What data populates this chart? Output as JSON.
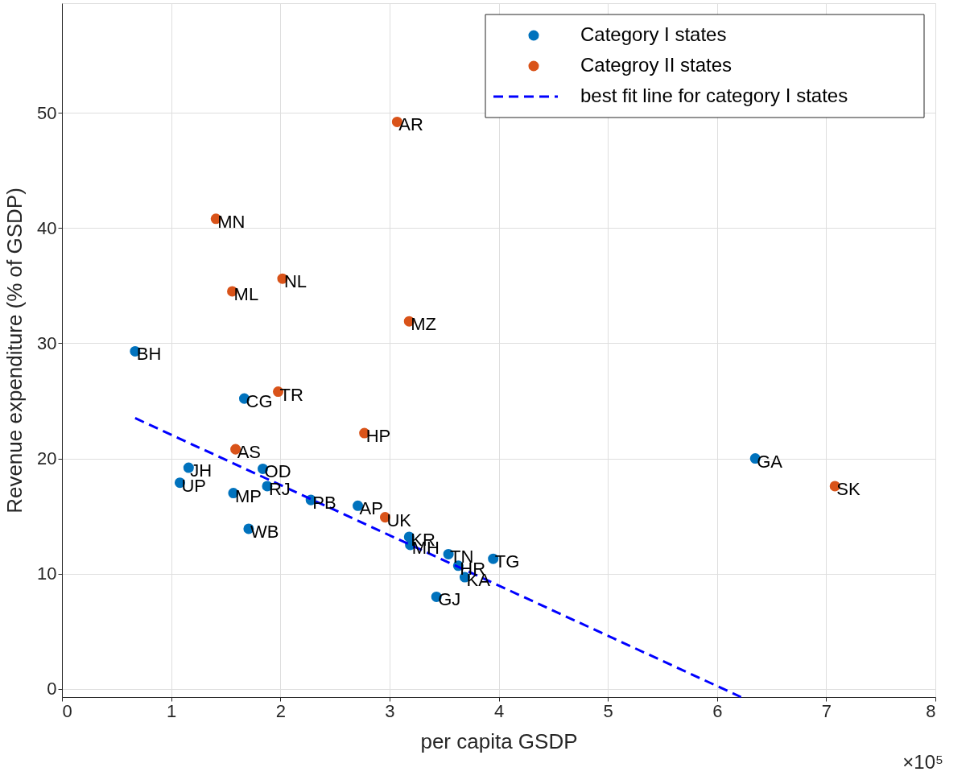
{
  "chart_data": {
    "type": "scatter",
    "xlabel": "per capita GSDP",
    "ylabel": "Revenue expenditure (% of GSDP)",
    "xlim": [
      0,
      8
    ],
    "xticks": [
      0,
      1,
      2,
      3,
      4,
      5,
      6,
      7,
      8
    ],
    "ylim": [
      -0.7,
      59.5
    ],
    "yticks": [
      0,
      10,
      20,
      30,
      40,
      50
    ],
    "grid": true,
    "legend": "top right",
    "marker": "circle",
    "series": [
      {
        "name": "Category I states",
        "color": "#0072bd",
        "x": [
          0.67,
          1.67,
          1.16,
          1.08,
          1.84,
          1.88,
          1.57,
          1.71,
          2.28,
          2.71,
          3.18,
          3.19,
          3.54,
          3.63,
          3.69,
          3.43,
          3.95,
          6.35
        ],
        "values": [
          29.3,
          25.2,
          19.2,
          17.9,
          19.1,
          17.6,
          17.0,
          13.9,
          16.4,
          15.9,
          13.2,
          12.5,
          11.7,
          10.7,
          9.7,
          8.0,
          11.3,
          20.0
        ]
      },
      {
        "name": "Categroy II states",
        "color": "#d95319",
        "x": [
          3.07,
          1.41,
          1.56,
          2.02,
          3.18,
          1.98,
          2.77,
          1.59,
          2.96,
          7.08
        ],
        "values": [
          49.2,
          40.8,
          34.5,
          35.6,
          31.9,
          25.8,
          22.2,
          20.8,
          14.9,
          17.6
        ]
      },
      {
        "name": "best fit line for category I states",
        "type": "line",
        "marker": "none",
        "line_style": "dashed",
        "color": "#0000ff",
        "x": [
          0.67,
          6.22
        ],
        "values": [
          23.5,
          -0.7
        ]
      }
    ],
    "annotations": [
      {
        "text": "BH",
        "x": 0.67,
        "y": 29.3
      },
      {
        "text": "CG",
        "x": 1.67,
        "y": 25.2
      },
      {
        "text": "JH",
        "x": 1.16,
        "y": 19.2
      },
      {
        "text": "UP",
        "x": 1.08,
        "y": 17.9
      },
      {
        "text": "OD",
        "x": 1.84,
        "y": 19.1
      },
      {
        "text": "RJ",
        "x": 1.88,
        "y": 17.6
      },
      {
        "text": "MP",
        "x": 1.57,
        "y": 17.0
      },
      {
        "text": "WB",
        "x": 1.71,
        "y": 13.9
      },
      {
        "text": "PB",
        "x": 2.28,
        "y": 16.4
      },
      {
        "text": "AP",
        "x": 2.71,
        "y": 15.9
      },
      {
        "text": "KR",
        "x": 3.18,
        "y": 13.2
      },
      {
        "text": "MH",
        "x": 3.19,
        "y": 12.5
      },
      {
        "text": "TN",
        "x": 3.54,
        "y": 11.7
      },
      {
        "text": "HR",
        "x": 3.63,
        "y": 10.7
      },
      {
        "text": "KA",
        "x": 3.69,
        "y": 9.7
      },
      {
        "text": "GJ",
        "x": 3.43,
        "y": 8.0
      },
      {
        "text": "TG",
        "x": 3.95,
        "y": 11.3
      },
      {
        "text": "GA",
        "x": 6.35,
        "y": 20.0
      },
      {
        "text": "AR",
        "x": 3.07,
        "y": 49.2
      },
      {
        "text": "MN",
        "x": 1.41,
        "y": 40.8
      },
      {
        "text": "ML",
        "x": 1.56,
        "y": 34.5
      },
      {
        "text": "NL",
        "x": 2.02,
        "y": 35.6
      },
      {
        "text": "MZ",
        "x": 3.18,
        "y": 31.9
      },
      {
        "text": "TR",
        "x": 1.98,
        "y": 25.8
      },
      {
        "text": "HP",
        "x": 2.77,
        "y": 22.2
      },
      {
        "text": "AS",
        "x": 1.59,
        "y": 20.8
      },
      {
        "text": "UK",
        "x": 2.96,
        "y": 14.9
      },
      {
        "text": "SK",
        "x": 7.08,
        "y": 17.6
      },
      "×10⁵"
    ]
  }
}
